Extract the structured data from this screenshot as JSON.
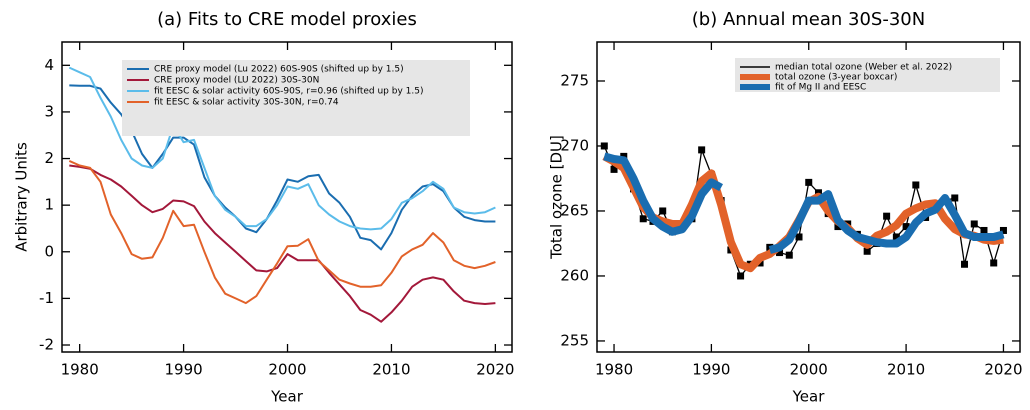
{
  "chart_data": [
    {
      "type": "line",
      "title": "(a) Fits to CRE model proxies",
      "x_label": "Year",
      "y_label": "Arbitrary Units",
      "x": [
        1979,
        1980,
        1981,
        1982,
        1983,
        1984,
        1985,
        1986,
        1987,
        1988,
        1989,
        1990,
        1991,
        1992,
        1993,
        1994,
        1995,
        1996,
        1997,
        1998,
        1999,
        2000,
        2001,
        2002,
        2003,
        2004,
        2005,
        2006,
        2007,
        2008,
        2009,
        2010,
        2011,
        2012,
        2013,
        2014,
        2015,
        2016,
        2017,
        2018,
        2019,
        2020
      ],
      "xlim": [
        1978.3,
        2021.6
      ],
      "xticks": [
        1980,
        1990,
        2000,
        2010,
        2020
      ],
      "ylim": [
        -2.15,
        4.5
      ],
      "yticks": [
        -2,
        -1,
        0,
        1,
        2,
        3,
        4
      ],
      "legend": "upper right",
      "series": [
        {
          "name": "CRE proxy model (Lu 2022) 60S-90S (shifted up by 1.5)",
          "color": "#1a6db0",
          "values": [
            3.57,
            3.56,
            3.56,
            3.5,
            3.2,
            2.95,
            2.6,
            2.1,
            1.8,
            2.1,
            2.45,
            2.45,
            2.3,
            1.6,
            1.2,
            0.95,
            0.75,
            0.5,
            0.42,
            0.7,
            1.1,
            1.55,
            1.5,
            1.62,
            1.65,
            1.25,
            1.05,
            0.75,
            0.3,
            0.25,
            0.05,
            0.4,
            0.9,
            1.2,
            1.4,
            1.45,
            1.3,
            0.95,
            0.75,
            0.68,
            0.65,
            0.65
          ]
        },
        {
          "name": "CRE proxy model (LU 2022) 30S-30N",
          "color": "#a3183a",
          "values": [
            1.85,
            1.82,
            1.78,
            1.65,
            1.55,
            1.4,
            1.2,
            1.0,
            0.85,
            0.92,
            1.1,
            1.08,
            0.98,
            0.65,
            0.4,
            0.2,
            0.0,
            -0.2,
            -0.4,
            -0.42,
            -0.35,
            -0.05,
            -0.18,
            -0.18,
            -0.18,
            -0.45,
            -0.7,
            -0.95,
            -1.25,
            -1.35,
            -1.5,
            -1.3,
            -1.05,
            -0.75,
            -0.6,
            -0.55,
            -0.6,
            -0.85,
            -1.05,
            -1.1,
            -1.12,
            -1.1
          ]
        },
        {
          "name": "fit EESC & solar activity  60S-90S, r=0.96 (shifted up by 1.5)",
          "color": "#5bbcea",
          "values": [
            3.95,
            3.85,
            3.75,
            3.3,
            2.9,
            2.4,
            2.0,
            1.85,
            1.8,
            2.0,
            2.7,
            2.35,
            2.4,
            1.8,
            1.2,
            0.9,
            0.75,
            0.55,
            0.55,
            0.7,
            1.0,
            1.4,
            1.35,
            1.45,
            1.0,
            0.8,
            0.65,
            0.55,
            0.5,
            0.48,
            0.5,
            0.7,
            1.05,
            1.15,
            1.3,
            1.5,
            1.35,
            0.95,
            0.85,
            0.82,
            0.85,
            0.95
          ]
        },
        {
          "name": "fit EESC & solar activity  30S-30N, r=0.74",
          "color": "#e2622a",
          "values": [
            1.95,
            1.85,
            1.8,
            1.5,
            0.8,
            0.4,
            -0.05,
            -0.15,
            -0.12,
            0.3,
            0.88,
            0.55,
            0.58,
            0.0,
            -0.55,
            -0.9,
            -1.0,
            -1.1,
            -0.95,
            -0.6,
            -0.25,
            0.12,
            0.13,
            0.27,
            -0.2,
            -0.4,
            -0.6,
            -0.68,
            -0.75,
            -0.75,
            -0.72,
            -0.45,
            -0.1,
            0.05,
            0.15,
            0.4,
            0.2,
            -0.18,
            -0.3,
            -0.35,
            -0.3,
            -0.22
          ]
        }
      ]
    },
    {
      "type": "line",
      "title": "(b) Annual mean 30S-30N",
      "x_label": "Year",
      "y_label": "Total ozone [DU]",
      "x": [
        1979,
        1980,
        1981,
        1982,
        1983,
        1984,
        1985,
        1986,
        1987,
        1988,
        1989,
        1990,
        1991,
        1992,
        1993,
        1994,
        1995,
        1996,
        1997,
        1998,
        1999,
        2000,
        2001,
        2002,
        2003,
        2004,
        2005,
        2006,
        2007,
        2008,
        2009,
        2010,
        2011,
        2012,
        2013,
        2014,
        2015,
        2016,
        2017,
        2018,
        2019,
        2020
      ],
      "xlim": [
        1978.25,
        2021.7
      ],
      "xticks": [
        1980,
        1990,
        2000,
        2010,
        2020
      ],
      "ylim": [
        254.15,
        278
      ],
      "yticks": [
        255,
        260,
        265,
        270,
        275
      ],
      "legend": "upper right",
      "series": [
        {
          "name": "median total ozone (Weber et al. 2022)",
          "color": "#000000",
          "marker": "square",
          "values": [
            270,
            268.2,
            269.2,
            266.7,
            264.4,
            264.2,
            265.0,
            263.4,
            264.0,
            264.4,
            269.7,
            267.8,
            265.8,
            262.0,
            260.0,
            260.9,
            261.0,
            262.2,
            261.8,
            261.6,
            263.0,
            267.2,
            266.4,
            264.8,
            263.8,
            264.0,
            263.2,
            261.9,
            262.5,
            264.6,
            263.0,
            263.8,
            267.0,
            264.5,
            265.2,
            265.8,
            266.0,
            260.9,
            264.0,
            263.5,
            261.0,
            263.5
          ]
        },
        {
          "name": "total ozone (3-year boxcar)",
          "color": "#e2622a",
          "values": [
            269.2,
            268.8,
            268.3,
            266.8,
            265.3,
            264.5,
            264.2,
            264.0,
            264.0,
            265.5,
            267.3,
            267.9,
            265.5,
            262.6,
            260.9,
            260.6,
            261.4,
            261.7,
            262.3,
            263.0,
            264.3,
            265.7,
            266.1,
            265.0,
            264.2,
            263.7,
            262.9,
            262.4,
            263.1,
            263.4,
            263.9,
            264.8,
            265.2,
            265.5,
            265.6,
            264.4,
            263.6,
            263.2,
            263.1,
            262.8,
            262.7,
            262.8
          ]
        },
        {
          "name": "fit of Mg II and EESC",
          "color": "#1a6db0",
          "values": [
            269.2,
            269.0,
            268.9,
            267.5,
            265.8,
            264.4,
            263.8,
            263.4,
            263.6,
            264.6,
            266.3,
            267.2,
            266.8,
            null,
            null,
            null,
            null,
            262.0,
            262.2,
            262.8,
            264.2,
            265.8,
            265.8,
            266.3,
            264.3,
            263.5,
            263.0,
            262.8,
            262.6,
            262.5,
            262.5,
            263.0,
            264.1,
            264.8,
            265.1,
            266.0,
            264.7,
            263.3,
            263.0,
            263.0,
            263.0,
            263.2
          ]
        }
      ]
    }
  ]
}
